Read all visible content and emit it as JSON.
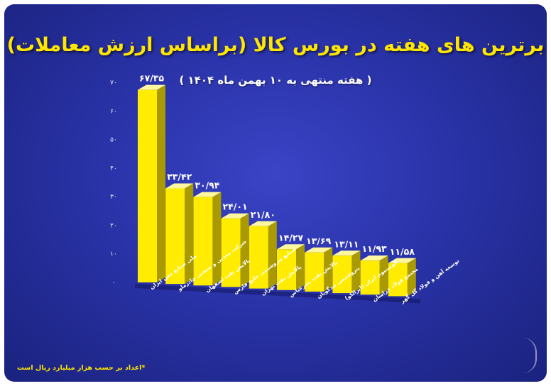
{
  "title": "برترین های هفته در بورس کالا (براساس ارزش معاملات)",
  "subtitle": "( هفته منتهی به ۱۰ بهمن ماه ۱۴۰۴ )",
  "note": "*اعداد بر حسب هزار میلیارد ریال است",
  "colors": {
    "background": "#2a33a8",
    "bar_front": "#ffec00",
    "bar_side": "#a89a00",
    "bar_top": "#fff7a0",
    "title": "#ffe600"
  },
  "chart_data": {
    "type": "bar",
    "ylim": [
      0,
      70
    ],
    "yticks": [
      0,
      10,
      20,
      30,
      40,
      50,
      60,
      70
    ],
    "ytick_labels": [
      "۰",
      "۱۰",
      "۲۰",
      "۳۰",
      "۴۰",
      "۵۰",
      "۶۰",
      "۷۰"
    ],
    "categories": [
      "ملی صنایع مس ایران",
      "شرکت معدنی و صنعتی چادرملو",
      "پالایش نفت اصفهان",
      "صنایع پتروشیمی خلیج فارس",
      "پالایش نفت تهران",
      "پالایش نفت بندرعباس",
      "پتروشیمی تندگویان",
      "آلومینیوم ایران (ایرالکو)",
      "مجتمع فولاد خراسان",
      "توسعه آهن و فولاد گل گهر"
    ],
    "values": [
      67.35,
      33.42,
      30.94,
      24.01,
      21.8,
      14.27,
      13.69,
      13.11,
      11.93,
      11.58
    ],
    "value_labels": [
      "۶۷/۳۵",
      "۳۳/۴۲",
      "۳۰/۹۴",
      "۲۴/۰۱",
      "۲۱/۸۰",
      "۱۴/۲۷",
      "۱۳/۶۹",
      "۱۳/۱۱",
      "۱۱/۹۳",
      "۱۱/۵۸"
    ]
  }
}
